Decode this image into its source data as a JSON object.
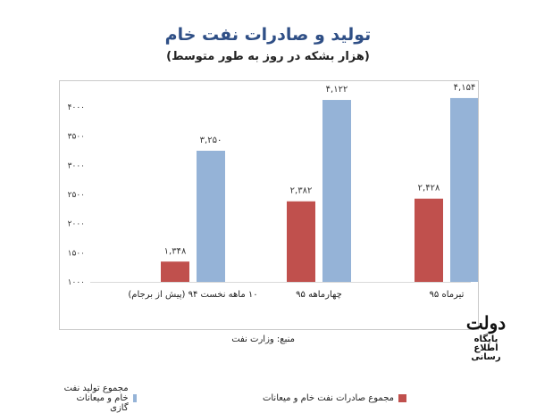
{
  "header": {
    "title": "تولید و صادرات نفت خام",
    "subtitle": "(هزار بشکه در روز به طور متوسط)"
  },
  "footer": {
    "source": "منبع: وزارت نفت",
    "logo_text_main": "دولت",
    "logo_text_sub": "پایگاه اطلاع رسانی"
  },
  "colors": {
    "exports": "#c0504d",
    "production": "#95b3d7",
    "title": "#2f4f86"
  },
  "chart_data": {
    "type": "bar",
    "categories": [
      "۱۰ ماهه نخست ۹۴ (پیش از برجام)",
      "چهارماهه ۹۵",
      "تیرماه ۹۵"
    ],
    "series": [
      {
        "name": "مجموع صادرات نفت خام و میعانات",
        "values": [
          1348,
          2382,
          2428
        ],
        "labels": [
          "۱,۳۴۸",
          "۲,۳۸۲",
          "۲,۴۲۸"
        ]
      },
      {
        "name": "مجموع تولید نفت خام و میعانات گازی",
        "values": [
          3250,
          4122,
          4154
        ],
        "labels": [
          "۳,۲۵۰",
          "۴,۱۲۲",
          "۴,۱۵۴"
        ]
      }
    ],
    "ylim": [
      1000,
      4000
    ],
    "yticks": [
      1000,
      1500,
      2000,
      2500,
      3000,
      3500,
      4000
    ],
    "ytick_labels": [
      "۱۰۰۰",
      "۱۵۰۰",
      "۲۰۰۰",
      "۲۵۰۰",
      "۳۰۰۰",
      "۳۵۰۰",
      "۴۰۰۰"
    ],
    "grid": false,
    "legend_position": "bottom"
  }
}
